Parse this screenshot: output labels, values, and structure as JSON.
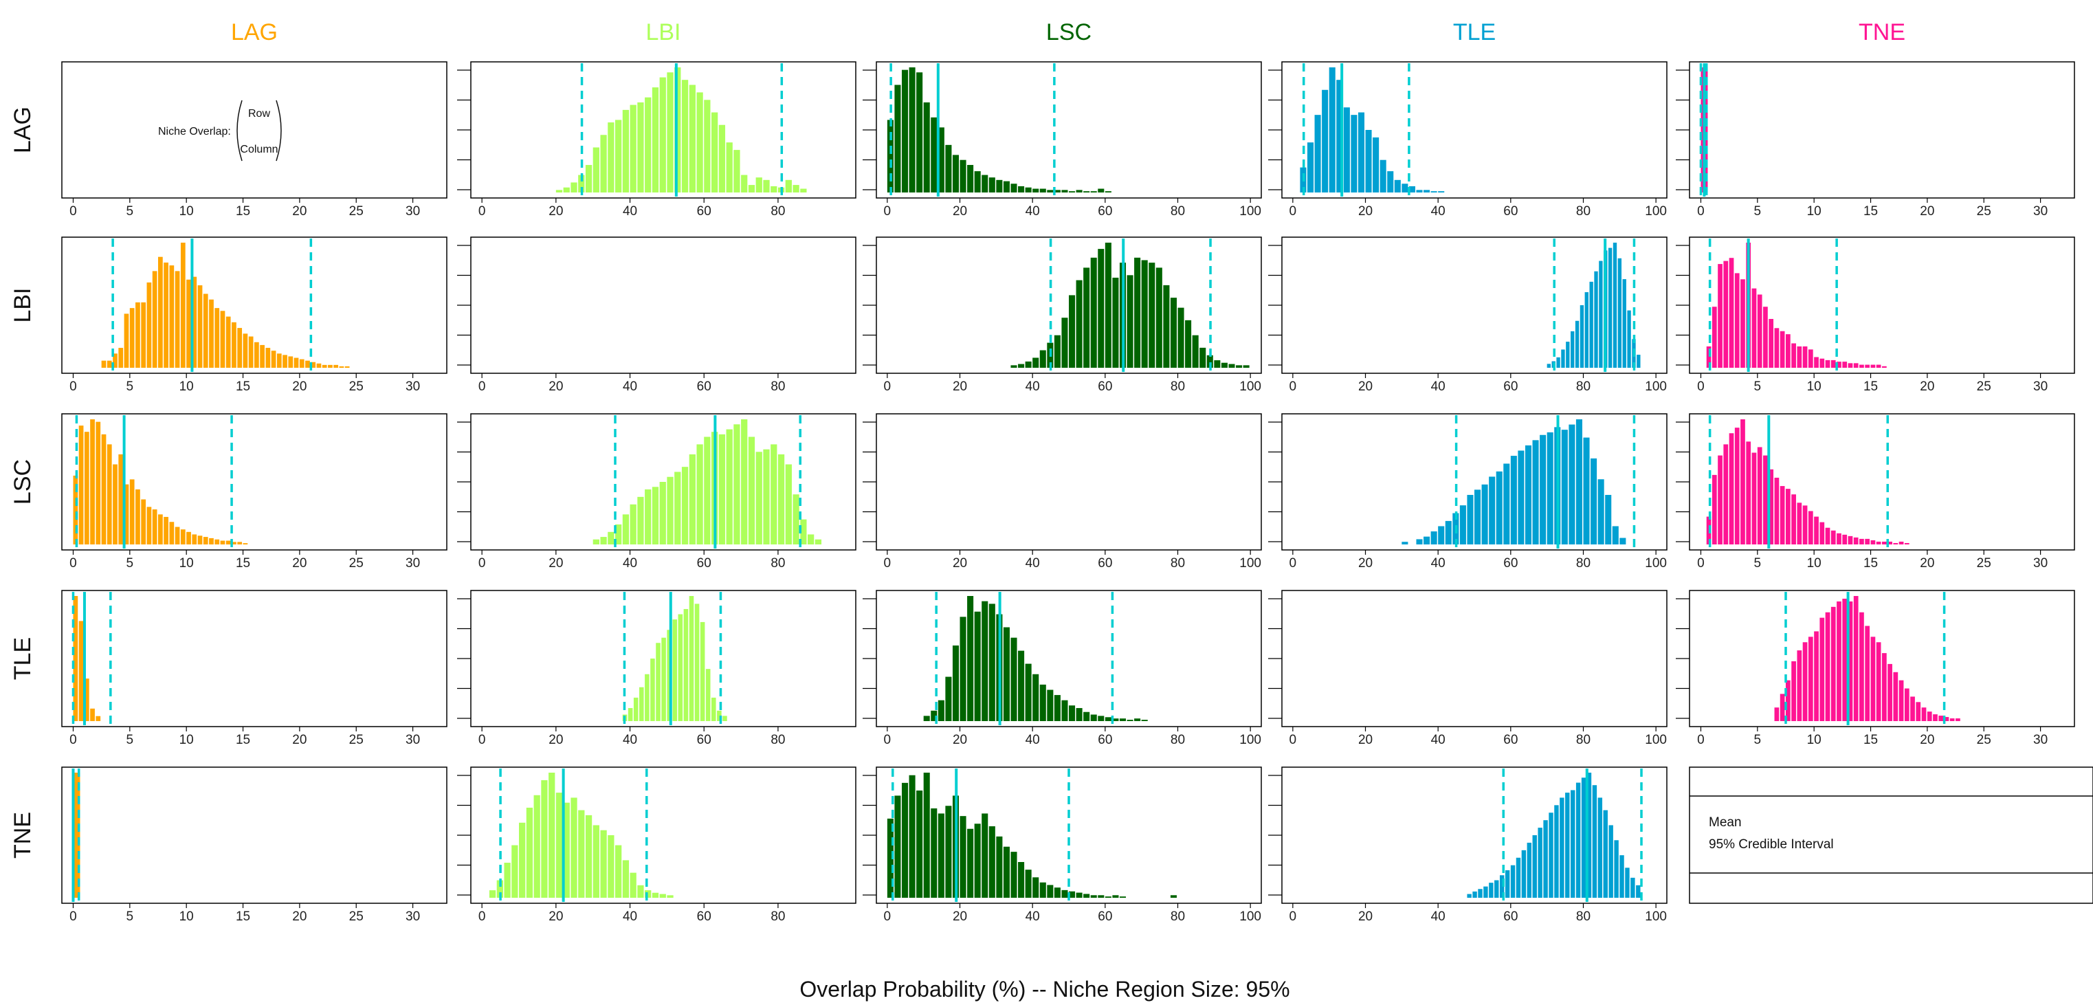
{
  "chart_data": {
    "type": "bar",
    "title": "",
    "xlabel": "Overlap Probability (%) -- Niche Region Size: 95%",
    "species": [
      "LAG",
      "LBI",
      "LSC",
      "TLE",
      "TNE"
    ],
    "colors": {
      "LAG": "#ffa500",
      "LBI": "#adff5a",
      "LSC": "#006400",
      "TLE": "#00a0d2",
      "TNE": "#ff1493",
      "mean_line": "#00ced1",
      "ci_line": "#00ced1"
    },
    "x_ticks": {
      "LAG": [
        0,
        5,
        10,
        15,
        20,
        25,
        30
      ],
      "LBI": [
        0,
        20,
        40,
        60,
        80
      ],
      "LSC": [
        0,
        20,
        40,
        60,
        80,
        100
      ],
      "TLE": [
        0,
        20,
        40,
        60,
        80,
        100
      ],
      "TNE": [
        0,
        5,
        10,
        15,
        20,
        25,
        30
      ]
    },
    "x_ranges": {
      "LAG": [
        -1,
        33
      ],
      "LBI": [
        -3,
        101
      ],
      "LSC": [
        -3,
        103
      ],
      "TLE": [
        -3,
        103
      ],
      "TNE": [
        -1,
        33
      ]
    },
    "diagonal_note": {
      "label": "Niche Overlap:",
      "numerator": "Row",
      "denominator": "Column"
    },
    "legend": {
      "mean": "Mean",
      "ci": "95% Credible Interval"
    },
    "panels": [
      {
        "row": "LAG",
        "col": "LBI",
        "bin_start": 20,
        "bin_width": 2,
        "values": [
          0.02,
          0.04,
          0.08,
          0.14,
          0.22,
          0.36,
          0.46,
          0.56,
          0.58,
          0.66,
          0.7,
          0.72,
          0.76,
          0.84,
          0.92,
          0.96,
          1.0,
          0.9,
          0.86,
          0.8,
          0.74,
          0.64,
          0.54,
          0.4,
          0.34,
          0.14,
          0.06,
          0.12,
          0.1,
          0.05,
          0.04,
          0.1,
          0.06,
          0.03
        ],
        "mean": 52.5,
        "ci": [
          27,
          81
        ]
      },
      {
        "row": "LAG",
        "col": "LSC",
        "bin_start": 0,
        "bin_width": 2,
        "values": [
          0.58,
          0.86,
          0.98,
          1.0,
          0.96,
          0.72,
          0.6,
          0.52,
          0.38,
          0.3,
          0.26,
          0.22,
          0.17,
          0.14,
          0.12,
          0.1,
          0.09,
          0.07,
          0.05,
          0.04,
          0.03,
          0.03,
          0.02,
          0.02,
          0.02,
          0.01,
          0.02,
          0.01,
          0.01,
          0.03,
          0.01
        ],
        "mean": 14,
        "ci": [
          1,
          46
        ]
      },
      {
        "row": "LAG",
        "col": "TLE",
        "bin_start": 2,
        "bin_width": 2,
        "values": [
          0.2,
          0.4,
          0.62,
          0.82,
          1.0,
          0.9,
          0.68,
          0.62,
          0.64,
          0.5,
          0.44,
          0.26,
          0.17,
          0.1,
          0.07,
          0.05,
          0.02,
          0.02,
          0.01,
          0.01
        ],
        "mean": 13.5,
        "ci": [
          3,
          32
        ]
      },
      {
        "row": "LAG",
        "col": "TNE",
        "bin_start": 0,
        "bin_width": 0.7,
        "values": [
          1.0
        ],
        "mean": 0.3,
        "ci": [
          0,
          0.5
        ]
      },
      {
        "row": "LBI",
        "col": "LAG",
        "bin_start": 2.5,
        "bin_width": 0.5,
        "values": [
          0.05,
          0.05,
          0.1,
          0.14,
          0.38,
          0.42,
          0.46,
          0.46,
          0.6,
          0.68,
          0.78,
          0.74,
          0.72,
          0.68,
          0.88,
          0.62,
          0.64,
          0.58,
          0.52,
          0.48,
          0.42,
          0.4,
          0.36,
          0.32,
          0.28,
          0.24,
          0.22,
          0.18,
          0.16,
          0.14,
          0.12,
          0.1,
          0.09,
          0.08,
          0.07,
          0.06,
          0.05,
          0.04,
          0.03,
          0.02,
          0.02,
          0.02,
          0.01,
          0.01
        ],
        "mean": 10.5,
        "ci": [
          3.5,
          21
        ]
      },
      {
        "row": "LBI",
        "col": "LSC",
        "bin_start": 34,
        "bin_width": 2,
        "values": [
          0.02,
          0.03,
          0.05,
          0.08,
          0.14,
          0.2,
          0.26,
          0.4,
          0.58,
          0.7,
          0.8,
          0.88,
          0.95,
          1.0,
          0.72,
          0.84,
          0.74,
          0.88,
          0.86,
          0.84,
          0.8,
          0.66,
          0.56,
          0.48,
          0.38,
          0.26,
          0.16,
          0.1,
          0.06,
          0.04,
          0.03,
          0.02,
          0.02
        ],
        "mean": 65,
        "ci": [
          45,
          89
        ]
      },
      {
        "row": "LBI",
        "col": "TLE",
        "bin_start": 70,
        "bin_width": 1.3,
        "values": [
          0.03,
          0.05,
          0.08,
          0.14,
          0.2,
          0.28,
          0.36,
          0.48,
          0.58,
          0.66,
          0.74,
          0.82,
          0.9,
          0.92,
          0.96,
          0.84,
          0.68,
          0.44,
          0.22,
          0.1
        ],
        "mean": 86,
        "ci": [
          72,
          94
        ]
      },
      {
        "row": "LBI",
        "col": "TNE",
        "bin_start": 0.5,
        "bin_width": 0.5,
        "values": [
          0.14,
          0.4,
          0.68,
          0.7,
          0.72,
          0.62,
          0.58,
          0.82,
          0.52,
          0.48,
          0.4,
          0.32,
          0.26,
          0.24,
          0.22,
          0.16,
          0.14,
          0.14,
          0.12,
          0.07,
          0.06,
          0.05,
          0.05,
          0.04,
          0.04,
          0.03,
          0.03,
          0.02,
          0.02,
          0.02,
          0.02,
          0.01
        ],
        "mean": 4.2,
        "ci": [
          0.8,
          12
        ]
      },
      {
        "row": "LSC",
        "col": "LAG",
        "bin_start": 0,
        "bin_width": 0.5,
        "values": [
          0.55,
          0.95,
          0.9,
          1.0,
          0.98,
          0.88,
          0.8,
          0.64,
          0.72,
          0.48,
          0.52,
          0.44,
          0.36,
          0.3,
          0.28,
          0.24,
          0.22,
          0.18,
          0.14,
          0.12,
          0.1,
          0.08,
          0.07,
          0.06,
          0.05,
          0.04,
          0.03,
          0.03,
          0.02,
          0.02,
          0.01
        ],
        "mean": 4.5,
        "ci": [
          0.3,
          14
        ]
      },
      {
        "row": "LSC",
        "col": "LBI",
        "bin_start": 30,
        "bin_width": 2,
        "values": [
          0.04,
          0.06,
          0.1,
          0.16,
          0.24,
          0.32,
          0.38,
          0.44,
          0.46,
          0.5,
          0.54,
          0.58,
          0.62,
          0.72,
          0.8,
          0.86,
          0.9,
          0.88,
          0.92,
          0.96,
          1.0,
          0.86,
          0.74,
          0.76,
          0.8,
          0.72,
          0.64,
          0.4,
          0.2,
          0.08,
          0.04
        ],
        "mean": 63,
        "ci": [
          36,
          86
        ]
      },
      {
        "row": "LSC",
        "col": "TLE",
        "bin_start": 30,
        "bin_width": 2,
        "values": [
          0.02,
          0.0,
          0.04,
          0.06,
          0.1,
          0.14,
          0.18,
          0.24,
          0.3,
          0.38,
          0.42,
          0.46,
          0.52,
          0.56,
          0.62,
          0.68,
          0.72,
          0.76,
          0.8,
          0.84,
          0.86,
          0.9,
          0.88,
          0.92,
          0.96,
          0.82,
          0.66,
          0.5,
          0.38,
          0.14,
          0.05
        ],
        "mean": 73,
        "ci": [
          45,
          94
        ]
      },
      {
        "row": "LSC",
        "col": "TNE",
        "bin_start": 0.5,
        "bin_width": 0.5,
        "values": [
          0.2,
          0.5,
          0.64,
          0.72,
          0.8,
          0.84,
          0.9,
          0.74,
          0.66,
          0.7,
          0.64,
          0.54,
          0.48,
          0.42,
          0.4,
          0.36,
          0.3,
          0.28,
          0.24,
          0.2,
          0.16,
          0.12,
          0.1,
          0.08,
          0.07,
          0.06,
          0.05,
          0.04,
          0.04,
          0.03,
          0.02,
          0.02,
          0.02,
          0.01,
          0.02,
          0.01
        ],
        "mean": 6,
        "ci": [
          0.8,
          16.5
        ]
      },
      {
        "row": "TLE",
        "col": "LAG",
        "bin_start": 0,
        "bin_width": 0.5,
        "values": [
          1.0,
          0.8,
          0.34,
          0.1,
          0.04
        ],
        "mean": 1.0,
        "ci": [
          0,
          3.3
        ]
      },
      {
        "row": "TLE",
        "col": "LBI",
        "bin_start": 38,
        "bin_width": 1.5,
        "values": [
          0.05,
          0.1,
          0.18,
          0.26,
          0.36,
          0.48,
          0.6,
          0.64,
          0.7,
          0.78,
          0.82,
          0.86,
          0.96,
          0.9,
          0.76,
          0.4,
          0.18,
          0.08,
          0.04
        ],
        "mean": 51,
        "ci": [
          38.5,
          64.5
        ]
      },
      {
        "row": "TLE",
        "col": "LSC",
        "bin_start": 10,
        "bin_width": 2,
        "values": [
          0.04,
          0.08,
          0.16,
          0.34,
          0.58,
          0.8,
          0.96,
          0.84,
          0.92,
          0.9,
          0.82,
          0.72,
          0.64,
          0.54,
          0.44,
          0.36,
          0.28,
          0.24,
          0.2,
          0.16,
          0.12,
          0.1,
          0.07,
          0.05,
          0.04,
          0.03,
          0.02,
          0.02,
          0.01,
          0.02,
          0.01
        ],
        "mean": 31,
        "ci": [
          13.5,
          62
        ]
      },
      {
        "row": "TLE",
        "col": "TNE",
        "bin_start": 6.5,
        "bin_width": 0.5,
        "values": [
          0.1,
          0.2,
          0.3,
          0.44,
          0.52,
          0.58,
          0.62,
          0.66,
          0.76,
          0.8,
          0.84,
          0.88,
          0.9,
          0.88,
          0.92,
          0.8,
          0.7,
          0.62,
          0.58,
          0.5,
          0.42,
          0.36,
          0.3,
          0.24,
          0.18,
          0.14,
          0.1,
          0.07,
          0.05,
          0.04,
          0.03,
          0.02,
          0.02
        ],
        "mean": 13,
        "ci": [
          7.5,
          21.5
        ]
      },
      {
        "row": "TNE",
        "col": "LAG",
        "bin_start": 0,
        "bin_width": 0.7,
        "values": [
          1.0
        ],
        "mean": 0,
        "ci": [
          0,
          0.5
        ]
      },
      {
        "row": "TNE",
        "col": "LBI",
        "bin_start": 2,
        "bin_width": 2,
        "values": [
          0.06,
          0.14,
          0.28,
          0.42,
          0.6,
          0.72,
          0.82,
          0.94,
          1.0,
          0.84,
          0.76,
          0.8,
          0.7,
          0.66,
          0.58,
          0.54,
          0.5,
          0.42,
          0.3,
          0.2,
          0.1,
          0.06,
          0.04,
          0.03,
          0.02
        ],
        "mean": 22,
        "ci": [
          5,
          44.5
        ]
      },
      {
        "row": "TNE",
        "col": "LSC",
        "bin_start": 0,
        "bin_width": 2,
        "values": [
          0.62,
          0.8,
          0.9,
          0.96,
          0.84,
          0.98,
          0.7,
          0.66,
          0.72,
          0.8,
          0.64,
          0.54,
          0.58,
          0.66,
          0.56,
          0.48,
          0.4,
          0.36,
          0.28,
          0.22,
          0.16,
          0.12,
          0.1,
          0.08,
          0.06,
          0.05,
          0.04,
          0.03,
          0.02,
          0.02,
          0.01,
          0.02,
          0.01,
          0.0,
          0.0,
          0.0,
          0.0,
          0.0,
          0.0,
          0.02
        ],
        "mean": 19,
        "ci": [
          1.5,
          50
        ]
      },
      {
        "row": "TNE",
        "col": "TLE",
        "bin_start": 48,
        "bin_width": 1.5,
        "values": [
          0.03,
          0.05,
          0.07,
          0.09,
          0.12,
          0.14,
          0.18,
          0.22,
          0.26,
          0.32,
          0.38,
          0.44,
          0.5,
          0.56,
          0.62,
          0.68,
          0.74,
          0.8,
          0.84,
          0.86,
          0.92,
          0.96,
          1.0,
          0.9,
          0.8,
          0.7,
          0.58,
          0.46,
          0.34,
          0.24,
          0.16,
          0.1
        ],
        "mean": 81,
        "ci": [
          58,
          96
        ]
      }
    ]
  }
}
